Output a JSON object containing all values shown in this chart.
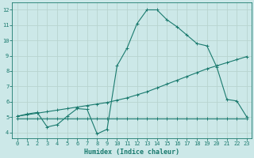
{
  "xlabel": "Humidex (Indice chaleur)",
  "bg_color": "#cce8e8",
  "grid_color": "#b8d4d0",
  "line_color": "#1a7a6e",
  "xlim": [
    -0.5,
    23.5
  ],
  "ylim": [
    3.6,
    12.5
  ],
  "xticks": [
    0,
    1,
    2,
    3,
    4,
    5,
    6,
    7,
    8,
    9,
    10,
    11,
    12,
    13,
    14,
    15,
    16,
    17,
    18,
    19,
    20,
    21,
    22,
    23
  ],
  "yticks": [
    4,
    5,
    6,
    7,
    8,
    9,
    10,
    11,
    12
  ],
  "line1_x": [
    0,
    1,
    2,
    3,
    4,
    5,
    6,
    7,
    8,
    9,
    10,
    11,
    12,
    13,
    14,
    15,
    16,
    17,
    18,
    19,
    20,
    21,
    22,
    23
  ],
  "line1_y": [
    4.9,
    4.9,
    4.9,
    4.9,
    4.9,
    4.9,
    4.9,
    4.9,
    4.9,
    4.9,
    4.9,
    4.9,
    4.9,
    4.9,
    4.9,
    4.9,
    4.9,
    4.9,
    4.9,
    4.9,
    4.9,
    4.9,
    4.9,
    4.9
  ],
  "line2_x": [
    0,
    1,
    2,
    3,
    4,
    5,
    6,
    7,
    8,
    9,
    10,
    11,
    12,
    13,
    14,
    15,
    16,
    17,
    18,
    19,
    20,
    21,
    22,
    23
  ],
  "line2_y": [
    5.05,
    5.15,
    5.25,
    5.35,
    5.45,
    5.55,
    5.65,
    5.75,
    5.85,
    5.95,
    6.1,
    6.25,
    6.45,
    6.65,
    6.9,
    7.15,
    7.4,
    7.65,
    7.9,
    8.15,
    8.35,
    8.55,
    8.75,
    8.95
  ],
  "line3_x": [
    0,
    1,
    2,
    3,
    4,
    5,
    6,
    7,
    8,
    9,
    10,
    11,
    12,
    13,
    14,
    15,
    16,
    17,
    18,
    19,
    20,
    21,
    22,
    23
  ],
  "line3_y": [
    5.05,
    5.2,
    5.3,
    4.35,
    4.5,
    5.05,
    5.55,
    5.5,
    3.9,
    4.2,
    8.35,
    9.5,
    11.1,
    12.0,
    12.0,
    11.35,
    10.9,
    10.35,
    9.8,
    9.65,
    8.25,
    6.15,
    6.05,
    5.0
  ],
  "marker": "+",
  "markersize": 3,
  "linewidth": 0.8
}
